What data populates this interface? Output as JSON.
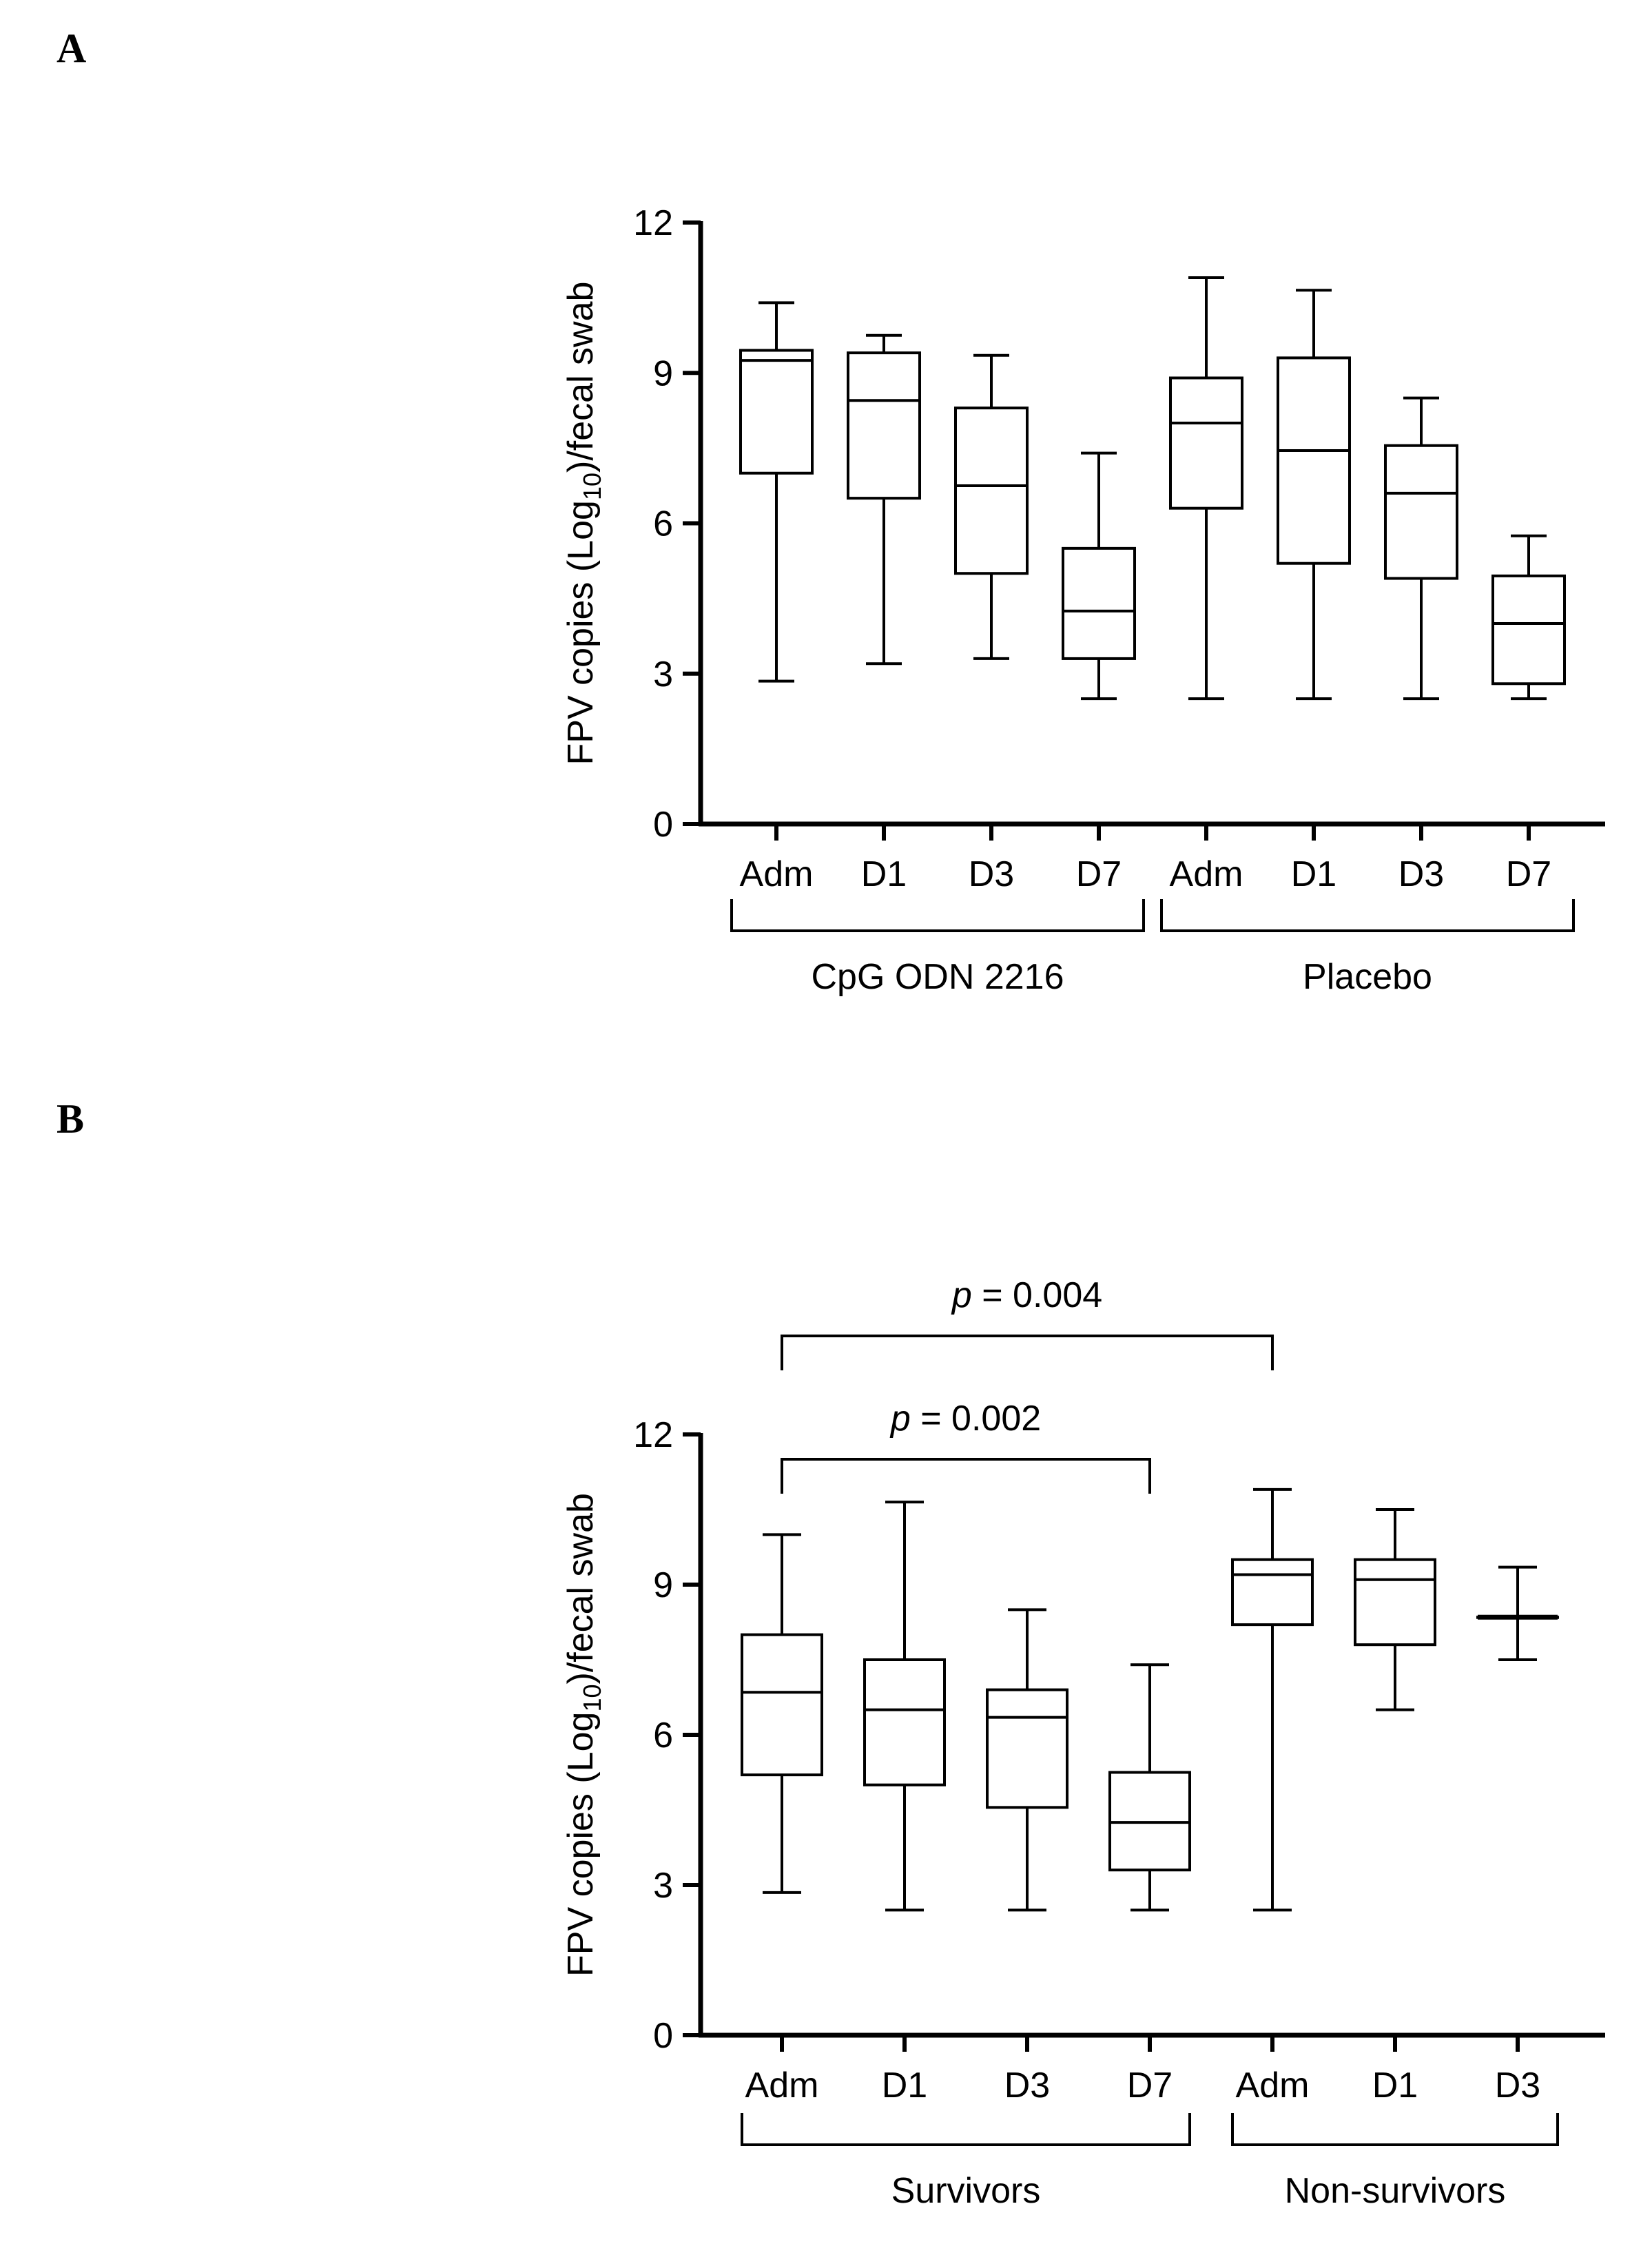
{
  "panels": {
    "a": {
      "label": "A"
    },
    "b": {
      "label": "B"
    }
  },
  "chart_data": [
    {
      "type": "boxplot",
      "panel": "A",
      "ylabel_prefix": "FPV copies (Log",
      "ylabel_sub": "10",
      "ylabel_suffix": ")/fecal swab",
      "ylim": [
        0,
        12
      ],
      "yticks": [
        0,
        3,
        6,
        9,
        12
      ],
      "categories": [
        "Adm",
        "D1",
        "D3",
        "D7",
        "Adm",
        "D1",
        "D3",
        "D7"
      ],
      "groups": [
        {
          "name": "CpG ODN 2216",
          "start": 0,
          "end": 3
        },
        {
          "name": "Placebo",
          "start": 4,
          "end": 7
        }
      ],
      "boxes": [
        {
          "min": 2.85,
          "q1": 7.0,
          "median": 9.25,
          "q3": 9.45,
          "max": 10.4
        },
        {
          "min": 3.2,
          "q1": 6.5,
          "median": 8.45,
          "q3": 9.4,
          "max": 9.75
        },
        {
          "min": 3.3,
          "q1": 5.0,
          "median": 6.75,
          "q3": 8.3,
          "max": 9.35
        },
        {
          "min": 2.5,
          "q1": 3.3,
          "median": 4.25,
          "q3": 5.5,
          "max": 7.4
        },
        {
          "min": 2.5,
          "q1": 6.3,
          "median": 8.0,
          "q3": 8.9,
          "max": 10.9
        },
        {
          "min": 2.5,
          "q1": 5.2,
          "median": 7.45,
          "q3": 9.3,
          "max": 10.65
        },
        {
          "min": 2.5,
          "q1": 4.9,
          "median": 6.6,
          "q3": 7.55,
          "max": 8.5
        },
        {
          "min": 2.5,
          "q1": 2.8,
          "median": 4.0,
          "q3": 4.95,
          "max": 5.75
        }
      ],
      "comparisons": []
    },
    {
      "type": "boxplot",
      "panel": "B",
      "ylabel_prefix": "FPV copies (Log",
      "ylabel_sub": "10",
      "ylabel_suffix": ")/fecal swab",
      "ylim": [
        0,
        12
      ],
      "yticks": [
        0,
        3,
        6,
        9,
        12
      ],
      "categories": [
        "Adm",
        "D1",
        "D3",
        "D7",
        "Adm",
        "D1",
        "D3"
      ],
      "groups": [
        {
          "name": "Survivors",
          "start": 0,
          "end": 3
        },
        {
          "name": "Non-survivors",
          "start": 4,
          "end": 6
        }
      ],
      "boxes": [
        {
          "min": 2.85,
          "q1": 5.2,
          "median": 6.85,
          "q3": 8.0,
          "max": 10.0
        },
        {
          "min": 2.5,
          "q1": 5.0,
          "median": 6.5,
          "q3": 7.5,
          "max": 10.65
        },
        {
          "min": 2.5,
          "q1": 4.55,
          "median": 6.35,
          "q3": 6.9,
          "max": 8.5
        },
        {
          "min": 2.5,
          "q1": 3.3,
          "median": 4.25,
          "q3": 5.25,
          "max": 7.4
        },
        {
          "min": 2.5,
          "q1": 8.2,
          "median": 9.2,
          "q3": 9.5,
          "max": 10.9
        },
        {
          "min": 6.5,
          "q1": 7.8,
          "median": 9.1,
          "q3": 9.5,
          "max": 10.5
        },
        {
          "min": 7.5,
          "q1": 8.35,
          "median": 8.35,
          "q3": 8.35,
          "max": 9.35
        }
      ],
      "comparisons": [
        {
          "from": 0,
          "to": 3,
          "p_label": "p",
          "p_value": " = 0.002",
          "level": 1
        },
        {
          "from": 0,
          "to": 4,
          "p_label": "p",
          "p_value": " = 0.004",
          "level": 2
        }
      ]
    }
  ]
}
